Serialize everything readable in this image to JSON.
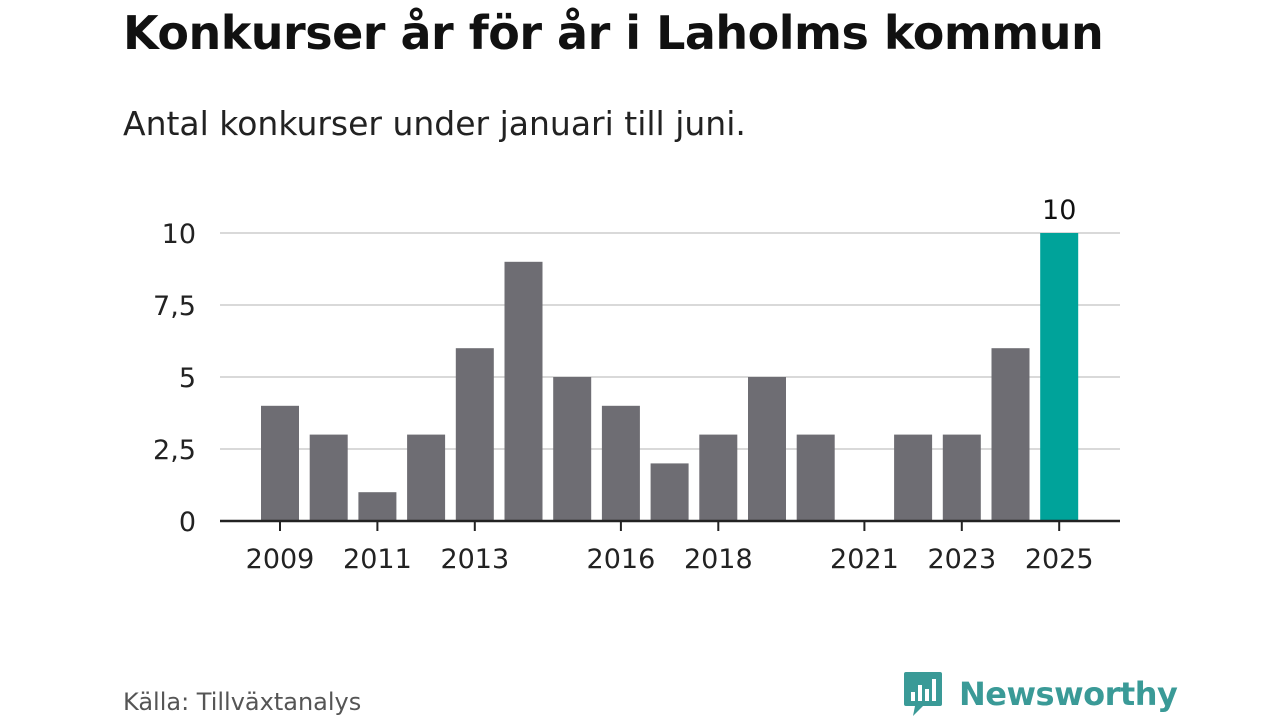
{
  "title": "Konkurser år för år i Laholms kommun",
  "subtitle": "Antal konkurser under januari till juni.",
  "source": "Källa: Tillväxtanalys",
  "brand": {
    "name": "Newsworthy",
    "logo_icon": "newsworthy-chart-bubble-icon"
  },
  "colors": {
    "bar": "#6e6d73",
    "highlight": "#00a39a",
    "grid": "#d9d9d9",
    "axis": "#222222",
    "brand": "#3a9a97"
  },
  "chart_data": {
    "type": "bar",
    "title": "Konkurser år för år i Laholms kommun",
    "subtitle": "Antal konkurser under januari till juni.",
    "xlabel": "",
    "ylabel": "",
    "categories": [
      "2009",
      "2010",
      "2011",
      "2012",
      "2013",
      "2014",
      "2015",
      "2016",
      "2017",
      "2018",
      "2019",
      "2020",
      "2021",
      "2022",
      "2023",
      "2024",
      "2025"
    ],
    "values": [
      4,
      3,
      1,
      3,
      6,
      9,
      5,
      4,
      2,
      3,
      5,
      3,
      0,
      3,
      3,
      6,
      10
    ],
    "highlight_index": 16,
    "data_labels": [
      {
        "index": 16,
        "text": "10"
      }
    ],
    "x_tick_labels": [
      "2009",
      "2011",
      "2013",
      "2016",
      "2018",
      "2021",
      "2023",
      "2025"
    ],
    "y_ticks": [
      0,
      2.5,
      5,
      7.5,
      10
    ],
    "y_tick_labels": [
      "0",
      "2,5",
      "5",
      "7,5",
      "10"
    ],
    "ylim": [
      0,
      10
    ],
    "grid": true,
    "legend": "none"
  }
}
